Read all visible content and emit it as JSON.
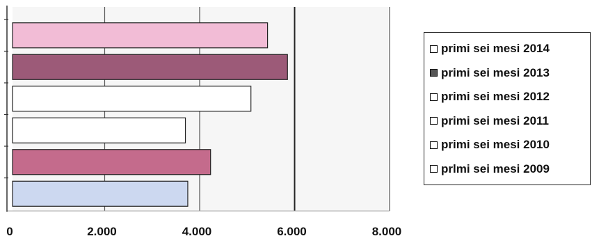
{
  "chart_data": {
    "type": "bar",
    "orientation": "horizontal",
    "categories": [
      "primi sei mesi 2014",
      "primi sei mesi 2013",
      "primi sei mesi 2012",
      "primi sei mesi 2011",
      "primi sei mesi  2010",
      "prlmi sei mesi 2009"
    ],
    "values": [
      5430,
      5850,
      5080,
      3700,
      4230,
      3750
    ],
    "colors": [
      "#f2bcd6",
      "#9c5a78",
      "#ffffff",
      "#ffffff",
      "#c46b8c",
      "#ccd8f0"
    ],
    "xlim": [
      0,
      8000
    ],
    "xticks": [
      "0",
      "2.000",
      "4.000",
      "6.000",
      "8.000"
    ],
    "grid": true,
    "legend_position": "right",
    "title": "",
    "xlabel": "",
    "ylabel": ""
  },
  "legend": {
    "items": [
      {
        "label": "primi sei mesi 2014",
        "color": "#ffffff"
      },
      {
        "label": "primi sei mesi 2013",
        "color": "#555555"
      },
      {
        "label": "primi sei mesi 2012",
        "color": "#ffffff"
      },
      {
        "label": "primi sei mesi 2011",
        "color": "#ffffff"
      },
      {
        "label": "primi sei mesi  2010",
        "color": "#ffffff"
      },
      {
        "label": "prlmi sei mesi 2009",
        "color": "#ffffff"
      }
    ]
  }
}
